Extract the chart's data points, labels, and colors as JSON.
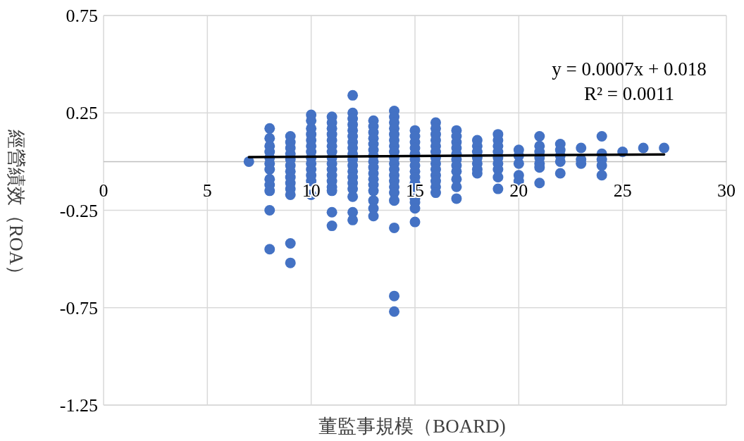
{
  "chart_data": {
    "type": "scatter",
    "xlabel": "董監事規模（BOARD)",
    "ylabel": "經營績效（ROA）",
    "annotations": [
      "y = 0.0007x + 0.018",
      "R² = 0.0011"
    ],
    "xlim": [
      0,
      30
    ],
    "xticks": [
      0,
      5,
      10,
      15,
      20,
      25,
      30
    ],
    "ylim": [
      -1.25,
      0.75
    ],
    "yticks": [
      -1.25,
      -0.75,
      -0.25,
      0.25,
      0.75
    ],
    "grid": true,
    "marker": "circle",
    "series": [
      {
        "color": "#4472c4",
        "x": [
          7,
          8,
          8,
          8,
          8,
          8,
          8,
          8,
          8,
          8,
          8,
          8,
          8,
          9,
          9,
          9,
          9,
          9,
          9,
          9,
          9,
          9,
          9,
          9,
          9,
          9,
          10,
          10,
          10,
          10,
          10,
          10,
          10,
          10,
          10,
          10,
          10,
          10,
          10,
          11,
          11,
          11,
          11,
          11,
          11,
          11,
          11,
          11,
          11,
          11,
          11,
          11,
          11,
          11,
          11,
          12,
          12,
          12,
          12,
          12,
          12,
          12,
          12,
          12,
          12,
          12,
          12,
          12,
          12,
          12,
          12,
          12,
          12,
          13,
          13,
          13,
          13,
          13,
          13,
          13,
          13,
          13,
          13,
          13,
          13,
          13,
          13,
          13,
          13,
          14,
          14,
          14,
          14,
          14,
          14,
          14,
          14,
          14,
          14,
          14,
          14,
          14,
          14,
          14,
          14,
          14,
          14,
          14,
          15,
          15,
          15,
          15,
          15,
          15,
          15,
          15,
          15,
          15,
          15,
          15,
          15,
          15,
          15,
          16,
          16,
          16,
          16,
          16,
          16,
          16,
          16,
          16,
          16,
          16,
          16,
          16,
          17,
          17,
          17,
          17,
          17,
          17,
          17,
          17,
          17,
          17,
          17,
          18,
          18,
          18,
          18,
          18,
          18,
          18,
          19,
          19,
          19,
          19,
          19,
          19,
          19,
          19,
          19,
          20,
          20,
          20,
          20,
          20,
          21,
          21,
          21,
          21,
          21,
          21,
          21,
          22,
          22,
          22,
          22,
          22,
          23,
          23,
          23,
          24,
          24,
          24,
          24,
          24,
          25,
          26,
          27
        ],
        "values": [
          0,
          0.17,
          0.12,
          0.08,
          0.05,
          0.02,
          -0.01,
          -0.04,
          -0.09,
          -0.12,
          -0.15,
          -0.25,
          -0.45,
          0.13,
          0.1,
          0.07,
          0.04,
          0.01,
          -0.02,
          -0.05,
          -0.08,
          -0.11,
          -0.14,
          -0.17,
          -0.42,
          -0.52,
          0.24,
          0.21,
          0.17,
          0.14,
          0.11,
          0.08,
          0.05,
          0.02,
          -0.01,
          -0.04,
          -0.07,
          -0.1,
          -0.17,
          0.23,
          0.2,
          0.17,
          0.14,
          0.11,
          0.08,
          0.05,
          0.02,
          -0.01,
          -0.04,
          -0.07,
          -0.1,
          -0.13,
          -0.15,
          -0.26,
          -0.33,
          0.34,
          0.25,
          0.22,
          0.19,
          0.16,
          0.13,
          0.1,
          0.07,
          0.04,
          0.01,
          -0.02,
          -0.05,
          -0.08,
          -0.11,
          -0.14,
          -0.18,
          -0.26,
          -0.3,
          0.21,
          0.18,
          0.15,
          0.12,
          0.09,
          0.06,
          0.03,
          0,
          -0.03,
          -0.06,
          -0.09,
          -0.12,
          -0.15,
          -0.2,
          -0.24,
          -0.28,
          0.26,
          0.23,
          0.2,
          0.17,
          0.14,
          0.11,
          0.08,
          0.05,
          0.02,
          -0.01,
          -0.04,
          -0.07,
          -0.1,
          -0.13,
          -0.16,
          -0.2,
          -0.34,
          -0.69,
          -0.77,
          0.16,
          0.13,
          0.1,
          0.07,
          0.04,
          0.01,
          -0.02,
          -0.05,
          -0.08,
          -0.11,
          -0.13,
          -0.19,
          -0.21,
          -0.24,
          -0.31,
          0.2,
          0.17,
          0.14,
          0.11,
          0.08,
          0.05,
          0.02,
          -0.01,
          -0.04,
          -0.07,
          -0.1,
          -0.13,
          -0.16,
          0.16,
          0.13,
          0.1,
          0.07,
          0.04,
          0.01,
          -0.02,
          -0.05,
          -0.09,
          -0.13,
          -0.19,
          0.11,
          0.08,
          0.05,
          0.02,
          -0.01,
          -0.04,
          -0.06,
          0.14,
          0.11,
          0.08,
          0.05,
          0.02,
          -0.01,
          -0.04,
          -0.08,
          -0.14,
          0.06,
          0.03,
          -0.01,
          -0.07,
          -0.1,
          0.13,
          0.08,
          0.05,
          0.02,
          -0.01,
          -0.03,
          -0.11,
          0.09,
          0.06,
          0.03,
          0.0,
          -0.06,
          0.07,
          0.01,
          -0.01,
          0.13,
          0.04,
          0.01,
          -0.02,
          -0.07,
          0.05,
          0.07,
          0.07
        ]
      },
      {
        "type": "line",
        "color": "#000000",
        "marker": "none",
        "x": [
          7,
          27
        ],
        "values": [
          0.023,
          0.037
        ]
      }
    ]
  }
}
